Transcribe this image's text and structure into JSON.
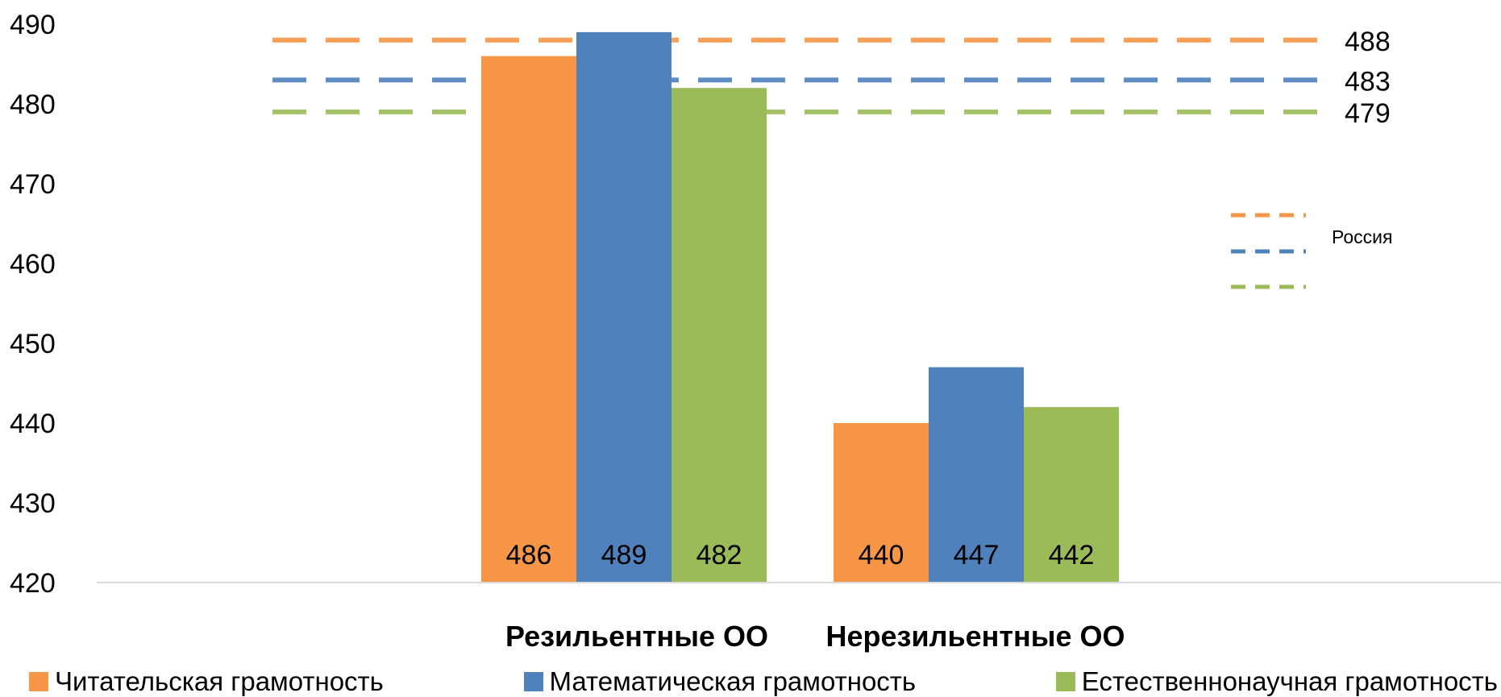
{
  "chart_data": {
    "type": "bar",
    "categories": [
      "Резильентные ОО",
      "Нерезильентные ОО"
    ],
    "series": [
      {
        "name": "Читательская грамотность",
        "color": "#F79646",
        "values": [
          486,
          440
        ]
      },
      {
        "name": "Математическая грамотность",
        "color": "#4F81BD",
        "values": [
          489,
          447
        ]
      },
      {
        "name": "Естественнонаучная грамотность",
        "color": "#9BBB59",
        "values": [
          482,
          442
        ]
      }
    ],
    "data_labels": [
      [
        "486",
        "489",
        "482"
      ],
      [
        "440",
        "447",
        "442"
      ]
    ],
    "y_ticks": [
      420,
      430,
      440,
      450,
      460,
      470,
      480,
      490
    ],
    "ylim": [
      420,
      490
    ],
    "grid": false,
    "reference_lines": {
      "name": "Россия",
      "lines": [
        {
          "value": 488,
          "label": "488",
          "color": "#F79646"
        },
        {
          "value": 483,
          "label": "483",
          "color": "#4F81BD"
        },
        {
          "value": 479,
          "label": "479",
          "color": "#9BBB59"
        }
      ]
    },
    "legend_position": "bottom"
  }
}
